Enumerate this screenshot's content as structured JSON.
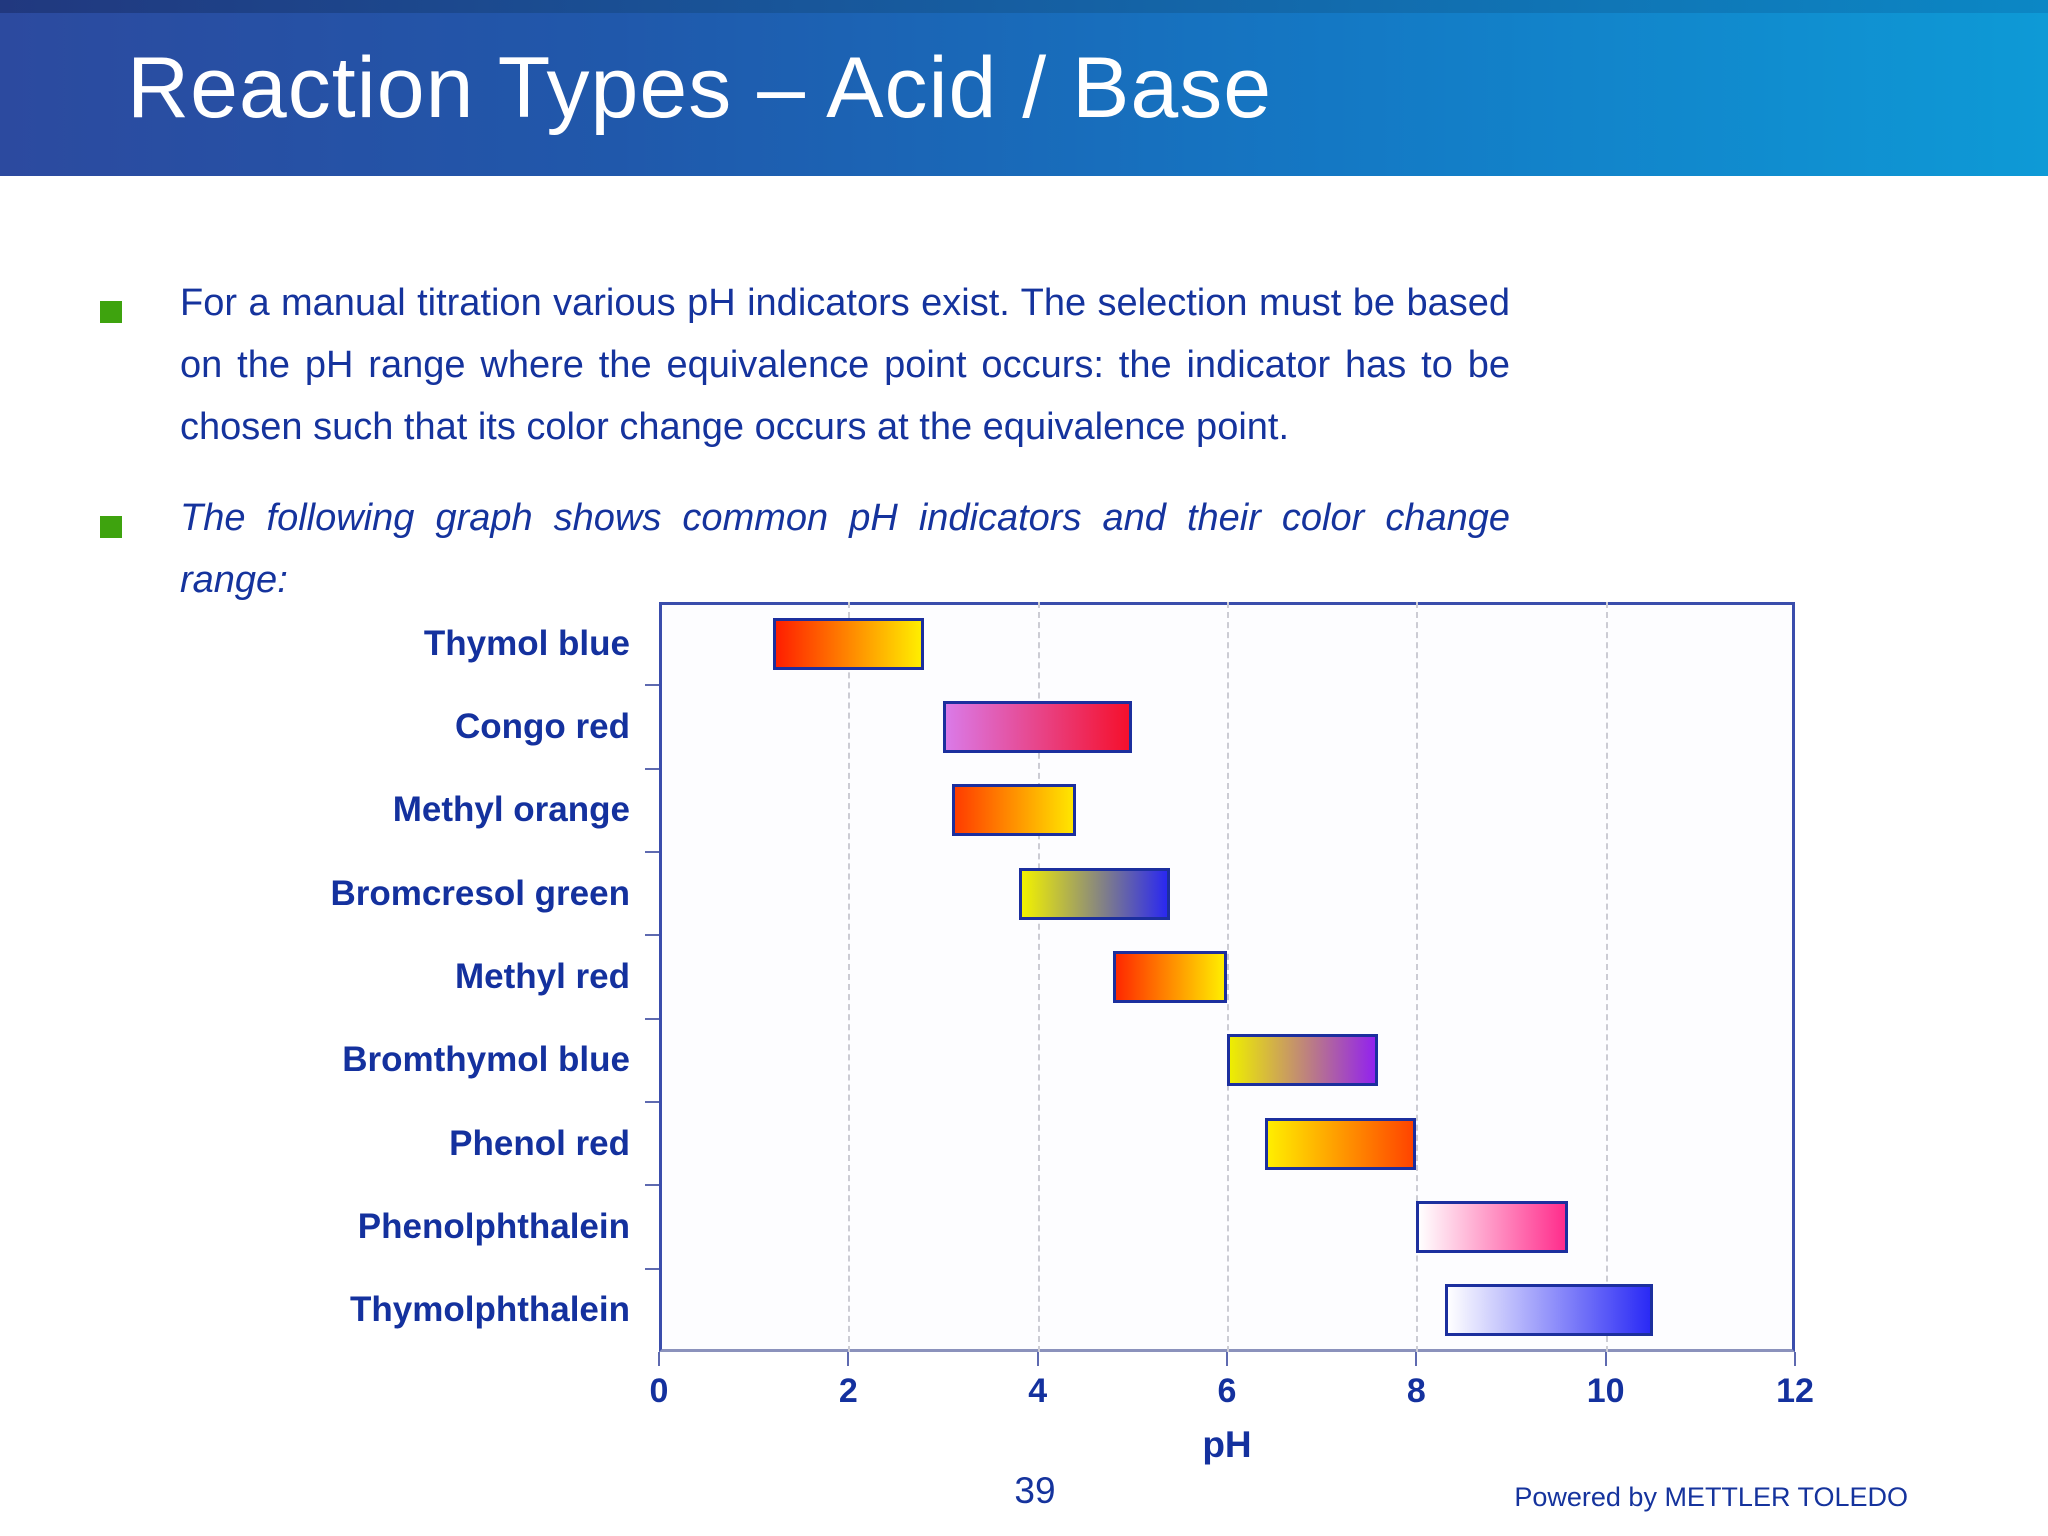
{
  "header": {
    "title": "Reaction Types – Acid / Base"
  },
  "bullets": [
    {
      "text": "For a manual titration various pH indicators exist. The selection must be based on the pH range where the equivalence point occurs: the indicator has to be chosen such that its color change occurs at the equivalence point."
    },
    {
      "text": "The following graph shows common pH indicators and their color change range:"
    }
  ],
  "chart_data": {
    "type": "bar",
    "subtype": "horizontal-range-bars",
    "title": "",
    "xlabel": "pH",
    "xlim": [
      0,
      12
    ],
    "xticks": [
      0,
      2,
      4,
      6,
      8,
      10,
      12
    ],
    "grid": "vertical dashed gridlines at pH 2,4,6,8,10",
    "legend_position": "none",
    "categories": [
      "Thymol blue",
      "Congo red",
      "Methyl orange",
      "Bromcresol green",
      "Methyl red",
      "Bromthymol blue",
      "Phenol red",
      "Phenolphthalein",
      "Thymolphthalein"
    ],
    "indicators": [
      {
        "name": "Thymol blue",
        "ph_range": [
          1.2,
          2.8
        ],
        "color_start": "#ff1e00",
        "color_end": "#ffee00"
      },
      {
        "name": "Congo red",
        "ph_range": [
          3.0,
          5.0
        ],
        "color_start": "#da7ae8",
        "color_end": "#f5102c"
      },
      {
        "name": "Methyl orange",
        "ph_range": [
          3.1,
          4.4
        ],
        "color_start": "#ff3c00",
        "color_end": "#ffe600"
      },
      {
        "name": "Bromcresol green",
        "ph_range": [
          3.8,
          5.4
        ],
        "color_start": "#f2f200",
        "color_end": "#2a28f0"
      },
      {
        "name": "Methyl red",
        "ph_range": [
          4.8,
          6.0
        ],
        "color_start": "#ff2800",
        "color_end": "#ffee00"
      },
      {
        "name": "Bromthymol blue",
        "ph_range": [
          6.0,
          7.6
        ],
        "color_start": "#eeee00",
        "color_end": "#9222ee"
      },
      {
        "name": "Phenol red",
        "ph_range": [
          6.4,
          8.0
        ],
        "color_start": "#ffee00",
        "color_end": "#ff4400"
      },
      {
        "name": "Phenolphthalein",
        "ph_range": [
          8.0,
          9.6
        ],
        "color_start": "#ffffff",
        "color_end": "#ff2d8c"
      },
      {
        "name": "Thymolphthalein",
        "ph_range": [
          8.3,
          10.5
        ],
        "color_start": "#ffffff",
        "color_end": "#2a2af5"
      }
    ],
    "bar_border_color": "#1c2f9e",
    "axis_text_color": "#14319e"
  },
  "footer": {
    "page_number": "39",
    "powered_by": "Powered by METTLER TOLEDO"
  },
  "colors": {
    "header_gradient_left": "#2c4a9f",
    "header_gradient_right": "#0e9ad6",
    "title_text": "#ffffff",
    "body_text": "#15339d",
    "bullet_square": "#3ea30e"
  }
}
